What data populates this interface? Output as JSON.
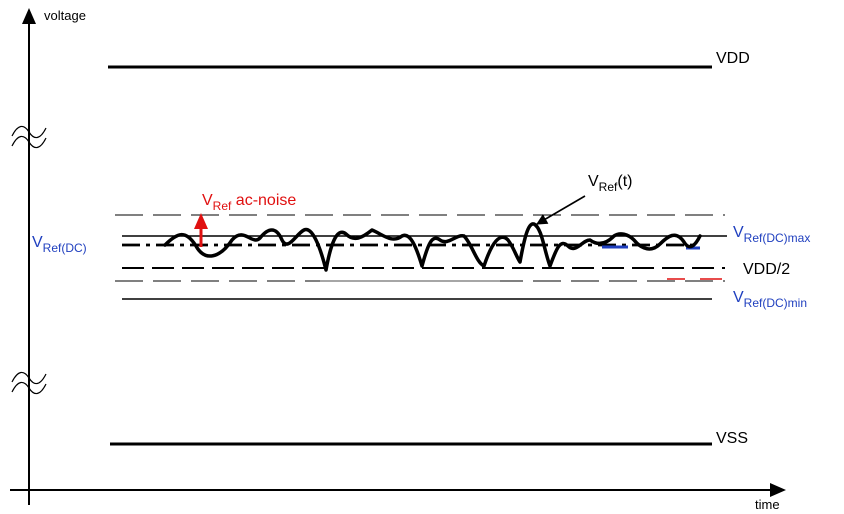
{
  "axes": {
    "y_label": "voltage",
    "x_label": "time"
  },
  "levels": {
    "vdd": "VDD",
    "vss": "VSS",
    "vdd_half": "VDD/2",
    "vref_dc": {
      "main": "V",
      "sub": "Ref(DC)"
    },
    "vref_dc_max": {
      "main": "V",
      "sub": "Ref(DC)max"
    },
    "vref_dc_min": {
      "main": "V",
      "sub": "Ref(DC)min"
    }
  },
  "annotations": {
    "ac_noise": {
      "main": "V",
      "sub": "Ref",
      "rest": " ac-noise"
    },
    "vref_t": {
      "main": "V",
      "sub": "Ref",
      "rest": "(t)"
    }
  },
  "colors": {
    "line": "#000000",
    "label_blue": "#1f3fbf",
    "accent_red": "#e01010",
    "gray_line": "#888888"
  }
}
